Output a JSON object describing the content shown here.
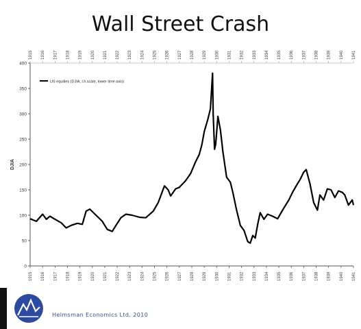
{
  "page": {
    "title": "Wall Street Crash",
    "credit": "Helmsman Economics Ltd. 2010"
  },
  "chart_data": {
    "type": "line",
    "title": "Wall Street Crash",
    "ylabel": "DJIA",
    "xlabel": "",
    "ylim": [
      0,
      400
    ],
    "yticks": [
      0,
      50,
      100,
      150,
      200,
      250,
      300,
      350,
      400
    ],
    "xlim": [
      1915,
      1941
    ],
    "xticks": [
      "1915",
      "1916",
      "1917",
      "1918",
      "1919",
      "1920",
      "1921",
      "1922",
      "1923",
      "1924",
      "1925",
      "1926",
      "1927",
      "1928",
      "1929",
      "1930",
      "1931",
      "1932",
      "1933",
      "1934",
      "1935",
      "1936",
      "1937",
      "1938",
      "1939",
      "1940",
      "1941"
    ],
    "grid": false,
    "legend_position": "top-left",
    "series": [
      {
        "name": "US equities (DJIA; l.h.scale, lower time axis)",
        "color": "#000000",
        "x": [
          1915.0,
          1915.5,
          1916.0,
          1916.3,
          1916.6,
          1917.0,
          1917.5,
          1917.9,
          1918.3,
          1918.8,
          1919.2,
          1919.5,
          1919.8,
          1920.3,
          1920.8,
          1921.2,
          1921.6,
          1921.9,
          1922.3,
          1922.7,
          1923.2,
          1923.8,
          1924.3,
          1924.9,
          1925.3,
          1925.8,
          1926.1,
          1926.3,
          1926.7,
          1927.0,
          1927.5,
          1927.9,
          1928.3,
          1928.6,
          1928.8,
          1929.0,
          1929.3,
          1929.5,
          1929.67,
          1929.72,
          1929.83,
          1929.92,
          1930.1,
          1930.3,
          1930.5,
          1930.8,
          1931.1,
          1931.3,
          1931.6,
          1931.9,
          1932.2,
          1932.5,
          1932.7,
          1932.9,
          1933.1,
          1933.3,
          1933.5,
          1933.8,
          1934.1,
          1934.5,
          1934.9,
          1935.3,
          1935.8,
          1936.1,
          1936.4,
          1936.7,
          1937.0,
          1937.2,
          1937.5,
          1937.8,
          1938.1,
          1938.3,
          1938.6,
          1938.9,
          1939.2,
          1939.5,
          1939.8,
          1940.1,
          1940.3,
          1940.6,
          1940.9,
          1941.0
        ],
        "y": [
          93,
          88,
          102,
          92,
          98,
          92,
          85,
          75,
          80,
          84,
          82,
          108,
          112,
          100,
          88,
          72,
          68,
          80,
          95,
          102,
          100,
          96,
          95,
          108,
          125,
          158,
          150,
          138,
          152,
          155,
          168,
          182,
          205,
          220,
          238,
          265,
          290,
          310,
          380,
          300,
          230,
          240,
          295,
          268,
          225,
          175,
          165,
          145,
          110,
          80,
          70,
          48,
          45,
          60,
          55,
          82,
          105,
          92,
          102,
          98,
          93,
          110,
          130,
          145,
          158,
          170,
          185,
          190,
          162,
          125,
          110,
          140,
          130,
          152,
          150,
          135,
          148,
          145,
          140,
          120,
          130,
          120
        ]
      }
    ]
  },
  "colors": {
    "line": "#000000",
    "axis": "#555555",
    "credit": "#2f4d8c",
    "logo": "#2b4aa0"
  },
  "icons": {
    "logo": "mountain-peaks-logo-icon"
  }
}
